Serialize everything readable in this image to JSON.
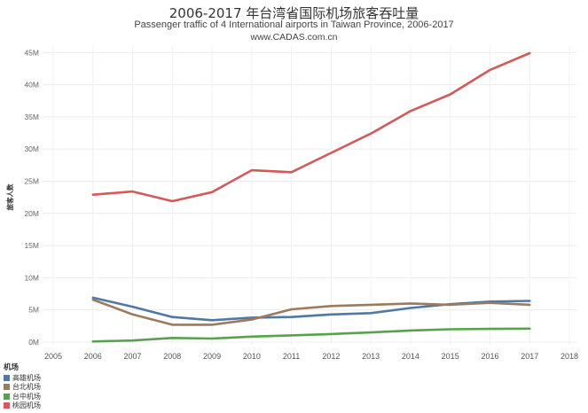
{
  "header": {
    "title": "2006-2017 年台湾省国际机场旅客吞吐量",
    "subtitle": "Passenger traffic of 4 International airports in Taiwan Province, 2006-2017",
    "source": "www.CADAS.com.cn"
  },
  "chart_data": {
    "type": "line",
    "title": "2006-2017 年台湾省国际机场旅客吞吐量",
    "subtitle": "Passenger traffic of 4 International airports in Taiwan Province, 2006-2017",
    "xlabel": "",
    "ylabel": "旅客人数",
    "x": [
      2006,
      2007,
      2008,
      2009,
      2010,
      2011,
      2012,
      2013,
      2014,
      2015,
      2016,
      2017
    ],
    "xlim": [
      2005,
      2018
    ],
    "x_ticks": [
      "2005",
      "2006",
      "2007",
      "2008",
      "2009",
      "2010",
      "2011",
      "2012",
      "2013",
      "2014",
      "2015",
      "2016",
      "2017",
      "2018"
    ],
    "ylim": [
      0,
      46000000
    ],
    "y_ticks": [
      0,
      5000000,
      10000000,
      15000000,
      20000000,
      25000000,
      30000000,
      35000000,
      40000000,
      45000000
    ],
    "y_tick_labels": [
      "0M",
      "5M",
      "10M",
      "15M",
      "20M",
      "25M",
      "30M",
      "35M",
      "40M",
      "45M"
    ],
    "grid": true,
    "legend_position": "bottom-left",
    "legend_title": "机场",
    "series": [
      {
        "name": "高雄机场",
        "color": "#4e79a7",
        "values": [
          6900000,
          5500000,
          3900000,
          3400000,
          3800000,
          3900000,
          4300000,
          4500000,
          5300000,
          5900000,
          6300000,
          6400000
        ]
      },
      {
        "name": "台北机场",
        "color": "#9c7a5b",
        "values": [
          6600000,
          4300000,
          2700000,
          2700000,
          3500000,
          5100000,
          5600000,
          5800000,
          6000000,
          5800000,
          6100000,
          5800000
        ]
      },
      {
        "name": "台中机场",
        "color": "#59a14f",
        "values": [
          100000,
          250000,
          650000,
          550000,
          850000,
          1050000,
          1250000,
          1500000,
          1800000,
          2000000,
          2050000,
          2100000
        ]
      },
      {
        "name": "桃园机场",
        "color": "#d45a5a",
        "values": [
          22900000,
          23400000,
          21900000,
          23300000,
          26700000,
          26400000,
          29400000,
          32400000,
          35900000,
          38500000,
          42300000,
          44900000
        ]
      }
    ]
  }
}
